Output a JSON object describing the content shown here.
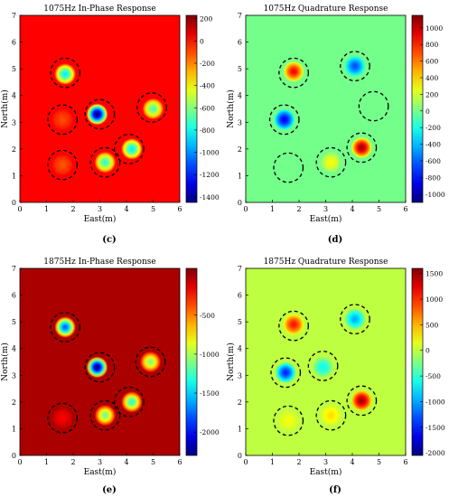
{
  "chart_data": [
    {
      "type": "heatmap",
      "title": "1075Hz In-Phase Response",
      "xlabel": "East(m)",
      "ylabel": "North(m)",
      "xlim": [
        0,
        6
      ],
      "ylim": [
        0,
        7
      ],
      "x_ticks": [
        "0",
        "1",
        "2",
        "3",
        "4",
        "5",
        "6"
      ],
      "y_ticks": [
        "0",
        "1",
        "2",
        "3",
        "4",
        "5",
        "6",
        "7"
      ],
      "colorbar": {
        "min": -1450,
        "max": 230,
        "ticks": [
          "200",
          "0",
          "-200",
          "-400",
          "-600",
          "-800",
          "-1000",
          "-1200",
          "-1400"
        ],
        "colormap": "jet"
      },
      "background_value": 20,
      "anomalies": [
        {
          "x": 1.7,
          "y": 4.8,
          "value": -850
        },
        {
          "x": 2.9,
          "y": 3.3,
          "value": -1450
        },
        {
          "x": 5.0,
          "y": 3.5,
          "value": -700
        },
        {
          "x": 4.2,
          "y": 2.0,
          "value": -850
        },
        {
          "x": 3.2,
          "y": 1.5,
          "value": -750
        },
        {
          "x": 1.6,
          "y": 3.1,
          "value": -100
        },
        {
          "x": 1.6,
          "y": 1.4,
          "value": -120
        }
      ],
      "circles": [
        {
          "x": 1.7,
          "y": 4.85
        },
        {
          "x": 1.6,
          "y": 3.1
        },
        {
          "x": 3.0,
          "y": 3.3
        },
        {
          "x": 4.95,
          "y": 3.55
        },
        {
          "x": 4.1,
          "y": 2.0
        },
        {
          "x": 3.2,
          "y": 1.5
        },
        {
          "x": 1.6,
          "y": 1.4
        }
      ],
      "panel_label": ""
    },
    {
      "type": "heatmap",
      "title": "1075Hz Quadrature Response",
      "xlabel": "East(m)",
      "ylabel": "North(m)",
      "xlim": [
        0,
        6
      ],
      "ylim": [
        0,
        7
      ],
      "x_ticks": [
        "0",
        "1",
        "2",
        "3",
        "4",
        "5",
        "6"
      ],
      "y_ticks": [
        "0",
        "1",
        "2",
        "3",
        "4",
        "5",
        "6",
        "7"
      ],
      "colorbar": {
        "min": -1100,
        "max": 1150,
        "ticks": [
          "1000",
          "800",
          "600",
          "400",
          "200",
          "0",
          "-200",
          "-400",
          "-600",
          "-800",
          "-1000"
        ],
        "colormap": "jet"
      },
      "background_value": 0,
      "anomalies": [
        {
          "x": 1.8,
          "y": 4.9,
          "value": 900
        },
        {
          "x": 4.1,
          "y": 5.1,
          "value": -650
        },
        {
          "x": 1.45,
          "y": 3.1,
          "value": -850
        },
        {
          "x": 4.35,
          "y": 2.05,
          "value": 1100
        },
        {
          "x": 3.2,
          "y": 1.5,
          "value": 300
        }
      ],
      "circles": [
        {
          "x": 1.8,
          "y": 4.85
        },
        {
          "x": 4.1,
          "y": 5.1
        },
        {
          "x": 1.45,
          "y": 3.1
        },
        {
          "x": 4.8,
          "y": 3.6
        },
        {
          "x": 1.6,
          "y": 1.3
        },
        {
          "x": 3.2,
          "y": 1.5
        },
        {
          "x": 4.35,
          "y": 2.05
        }
      ],
      "panel_label": ""
    },
    {
      "type": "heatmap",
      "title": "1875Hz In-Phase Response",
      "xlabel": "East(m)",
      "ylabel": "North(m)",
      "xlim": [
        0,
        6
      ],
      "ylim": [
        0,
        7
      ],
      "x_ticks": [
        "0",
        "1",
        "2",
        "3",
        "4",
        "5",
        "6"
      ],
      "y_ticks": [
        "0",
        "1",
        "2",
        "3",
        "4",
        "5",
        "6",
        "7"
      ],
      "colorbar": {
        "min": -2300,
        "max": 100,
        "ticks": [
          "-500",
          "-1000",
          "-1500",
          "-2000"
        ],
        "colormap": "jet"
      },
      "background_value": 0,
      "anomalies": [
        {
          "x": 1.7,
          "y": 4.8,
          "value": -1800
        },
        {
          "x": 2.9,
          "y": 3.3,
          "value": -2300
        },
        {
          "x": 4.9,
          "y": 3.5,
          "value": -1100
        },
        {
          "x": 4.2,
          "y": 2.0,
          "value": -1300
        },
        {
          "x": 3.2,
          "y": 1.5,
          "value": -1150
        },
        {
          "x": 1.6,
          "y": 1.4,
          "value": -200
        }
      ],
      "circles": [
        {
          "x": 1.7,
          "y": 4.8
        },
        {
          "x": 3.0,
          "y": 3.3
        },
        {
          "x": 4.9,
          "y": 3.5
        },
        {
          "x": 4.1,
          "y": 2.0
        },
        {
          "x": 3.2,
          "y": 1.5
        },
        {
          "x": 1.6,
          "y": 1.4
        }
      ],
      "panel_label": "(c)"
    },
    {
      "type": "heatmap",
      "title": "1875Hz Quadrature Response",
      "xlabel": "East(m)",
      "ylabel": "North(m)",
      "xlim": [
        0,
        6
      ],
      "ylim": [
        0,
        7
      ],
      "x_ticks": [
        "0",
        "1",
        "2",
        "3",
        "4",
        "5",
        "6"
      ],
      "y_ticks": [
        "0",
        "1",
        "2",
        "3",
        "4",
        "5",
        "6",
        "7"
      ],
      "colorbar": {
        "min": -2050,
        "max": 1600,
        "ticks": [
          "1500",
          "1000",
          "500",
          "0",
          "-500",
          "-1000",
          "-1500",
          "-2000"
        ],
        "colormap": "jet"
      },
      "background_value": 0,
      "anomalies": [
        {
          "x": 1.8,
          "y": 4.9,
          "value": 1100
        },
        {
          "x": 4.1,
          "y": 5.1,
          "value": -1000
        },
        {
          "x": 1.5,
          "y": 3.1,
          "value": -1500
        },
        {
          "x": 2.9,
          "y": 3.3,
          "value": -650
        },
        {
          "x": 4.35,
          "y": 2.05,
          "value": 1500
        },
        {
          "x": 3.2,
          "y": 1.5,
          "value": 350
        },
        {
          "x": 1.6,
          "y": 1.3,
          "value": 200
        }
      ],
      "circles": [
        {
          "x": 1.8,
          "y": 4.85
        },
        {
          "x": 4.1,
          "y": 5.1
        },
        {
          "x": 1.5,
          "y": 3.1
        },
        {
          "x": 2.9,
          "y": 3.35
        },
        {
          "x": 4.35,
          "y": 2.05
        },
        {
          "x": 3.2,
          "y": 1.5
        },
        {
          "x": 1.6,
          "y": 1.3
        }
      ],
      "panel_label": "(d)"
    }
  ],
  "bottom_panel_labels": [
    "(e)",
    "(f)"
  ]
}
